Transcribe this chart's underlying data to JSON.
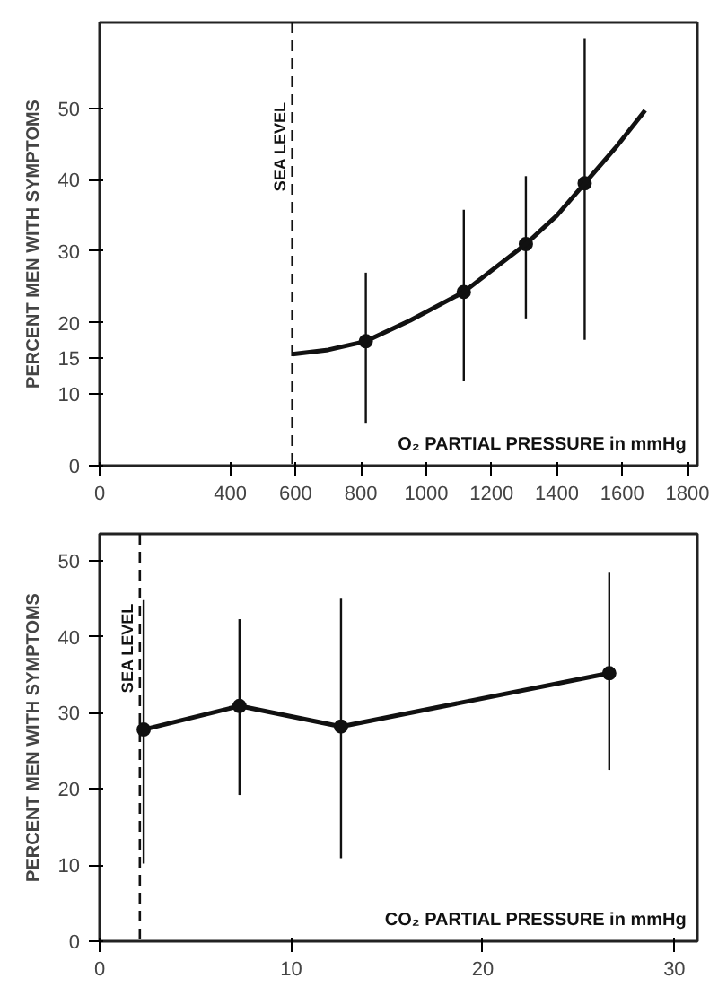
{
  "chart_data": [
    {
      "type": "scatter",
      "xlabel": "O₂ PARTIAL PRESSURE in mmHg",
      "ylabel": "PERCENT MEN WITH SYMPTOMS",
      "xlim": [
        0,
        1830
      ],
      "xticks": [
        0,
        400,
        600,
        800,
        1000,
        1200,
        1400,
        1600,
        1800
      ],
      "ylim": [
        0,
        62
      ],
      "yticks": [
        0,
        10,
        15,
        20,
        30,
        40,
        50
      ],
      "marker": "circle",
      "grid": false,
      "series": [
        {
          "color": "#111111",
          "x": [
            815,
            1115,
            1305,
            1485
          ],
          "values": [
            17.4,
            24.3,
            31,
            39.5
          ],
          "errors": [
            [
              6,
              27
            ],
            [
              11.8,
              35.8
            ],
            [
              20.6,
              40.5
            ],
            [
              17.6,
              59.8
            ]
          ]
        },
        {
          "type": "line",
          "marker": "none",
          "color": "#111111",
          "x": [
            590,
            700,
            815,
            950,
            1115,
            1305,
            1400,
            1485,
            1580,
            1670
          ],
          "values": [
            15.6,
            16.2,
            17.4,
            20.3,
            24.3,
            31,
            35,
            39.5,
            44.5,
            49.7
          ]
        }
      ],
      "ref_lines": [
        {
          "axis": "x",
          "value": 590,
          "label": "SEA LEVEL",
          "line_style": "dashed",
          "color": "#111111"
        }
      ]
    },
    {
      "type": "line",
      "xlabel": "CO₂ PARTIAL PRESSURE in mmHg",
      "ylabel": "PERCENT MEN WITH SYMPTOMS",
      "xlim": [
        0,
        31.2
      ],
      "xticks": [
        0,
        10,
        20,
        30
      ],
      "ylim": [
        0,
        53.5
      ],
      "yticks": [
        0,
        10,
        20,
        30,
        40,
        50
      ],
      "marker": "circle",
      "grid": false,
      "series": [
        {
          "color": "#111111",
          "x": [
            2.3,
            7.3,
            12.6,
            26.6
          ],
          "values": [
            27.8,
            30.9,
            28.2,
            35.2
          ],
          "errors": [
            [
              10.2,
              44.8
            ],
            [
              19.2,
              42.3
            ],
            [
              10.9,
              45
            ],
            [
              22.5,
              48.4
            ]
          ]
        }
      ],
      "ref_lines": [
        {
          "axis": "x",
          "value": 2.1,
          "label": "SEA LEVEL",
          "line_style": "dashed",
          "color": "#111111"
        }
      ]
    }
  ]
}
